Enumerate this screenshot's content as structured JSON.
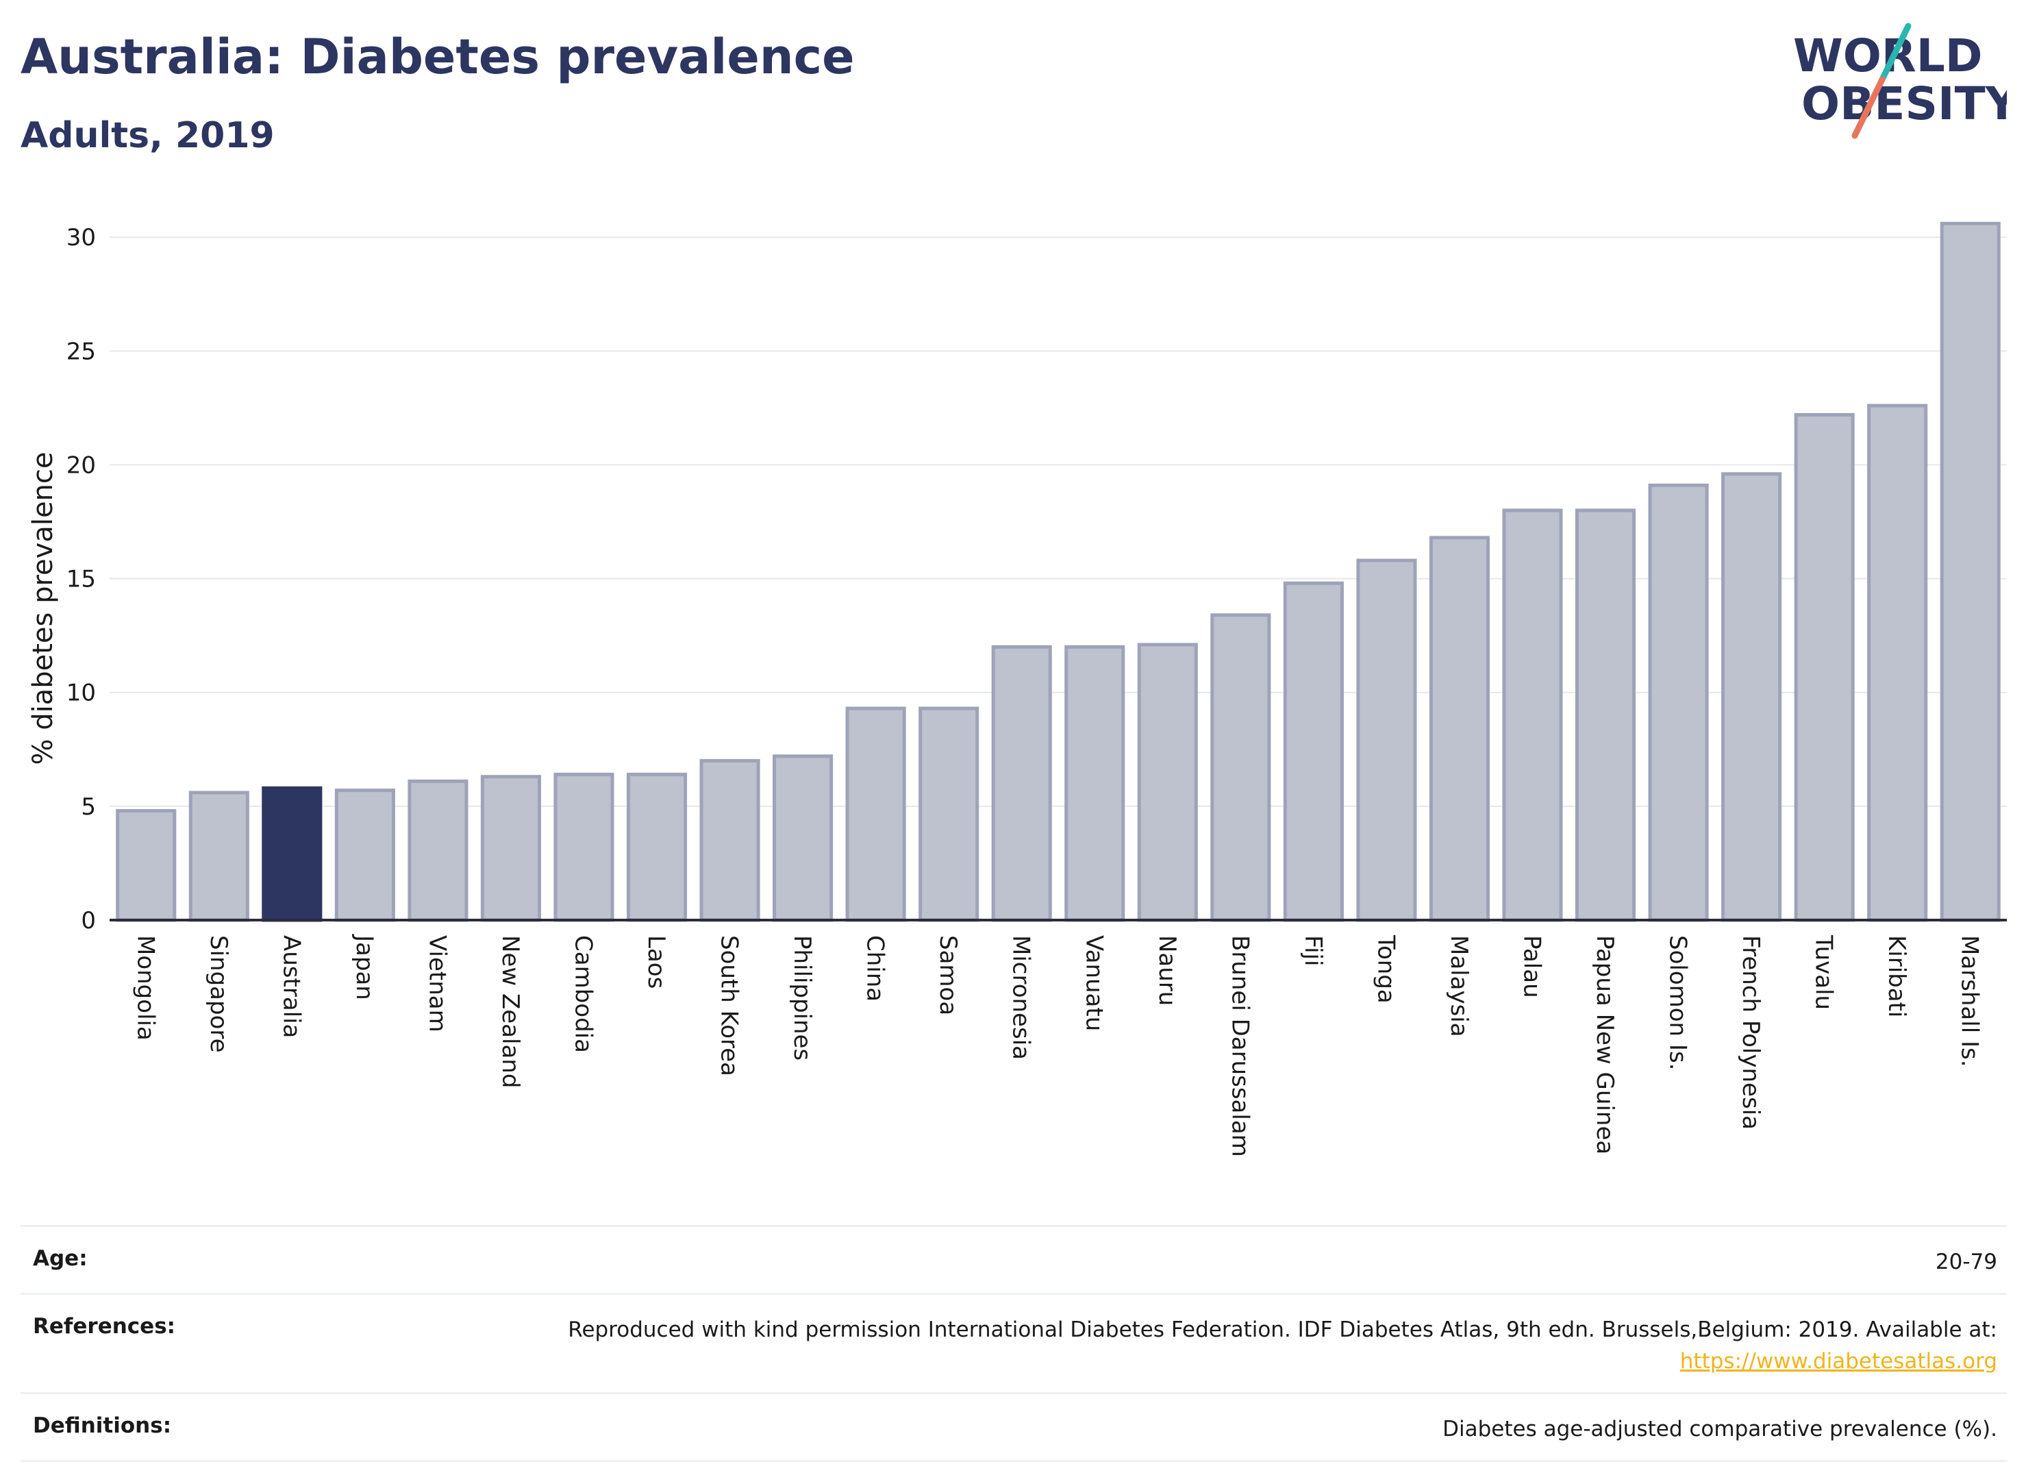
{
  "header": {
    "title": "Australia: Diabetes prevalence",
    "subtitle": "Adults, 2019"
  },
  "logo": {
    "line1": "WORLD",
    "line2": "OBESITY",
    "text_color": "#2d3561",
    "slash_colors": [
      "#2bb5b0",
      "#e8765d"
    ]
  },
  "chart_data": {
    "type": "bar",
    "ylabel": "% diabetes prevalence",
    "xlabel": "",
    "ylim": [
      0,
      31
    ],
    "yticks": [
      0,
      5,
      10,
      15,
      20,
      25,
      30
    ],
    "grid": true,
    "highlight_category": "Australia",
    "colors": {
      "bar_fill": "#bec1ce",
      "bar_stroke": "#9ea3b8",
      "highlight_fill": "#2d3561",
      "gridline": "#e6e8ee",
      "axis": "#2d2d3a"
    },
    "categories": [
      "Mongolia",
      "Singapore",
      "Australia",
      "Japan",
      "Vietnam",
      "New Zealand",
      "Cambodia",
      "Laos",
      "South Korea",
      "Philippines",
      "China",
      "Samoa",
      "Micronesia",
      "Vanuatu",
      "Nauru",
      "Brunei Darussalam",
      "Fiji",
      "Tonga",
      "Malaysia",
      "Palau",
      "Papua New Guinea",
      "Solomon Is.",
      "French Polynesia",
      "Tuvalu",
      "Kiribati",
      "Marshall Is."
    ],
    "values": [
      4.8,
      5.6,
      5.8,
      5.7,
      6.1,
      6.3,
      6.4,
      6.4,
      7.0,
      7.2,
      9.3,
      9.3,
      12.0,
      12.0,
      12.1,
      13.4,
      14.8,
      15.8,
      16.8,
      18.0,
      18.0,
      19.1,
      19.6,
      22.2,
      22.6,
      30.6
    ]
  },
  "info": {
    "age_label": "Age:",
    "age_value": "20-79",
    "references_label": "References:",
    "references_text": "Reproduced with kind permission International Diabetes Federation. IDF Diabetes Atlas, 9th edn. Brussels,Belgium: 2019. Available at:",
    "references_link": "https://www.diabetesatlas.org",
    "definitions_label": "Definitions:",
    "definitions_value": "Diabetes age-adjusted comparative prevalence (%)."
  }
}
